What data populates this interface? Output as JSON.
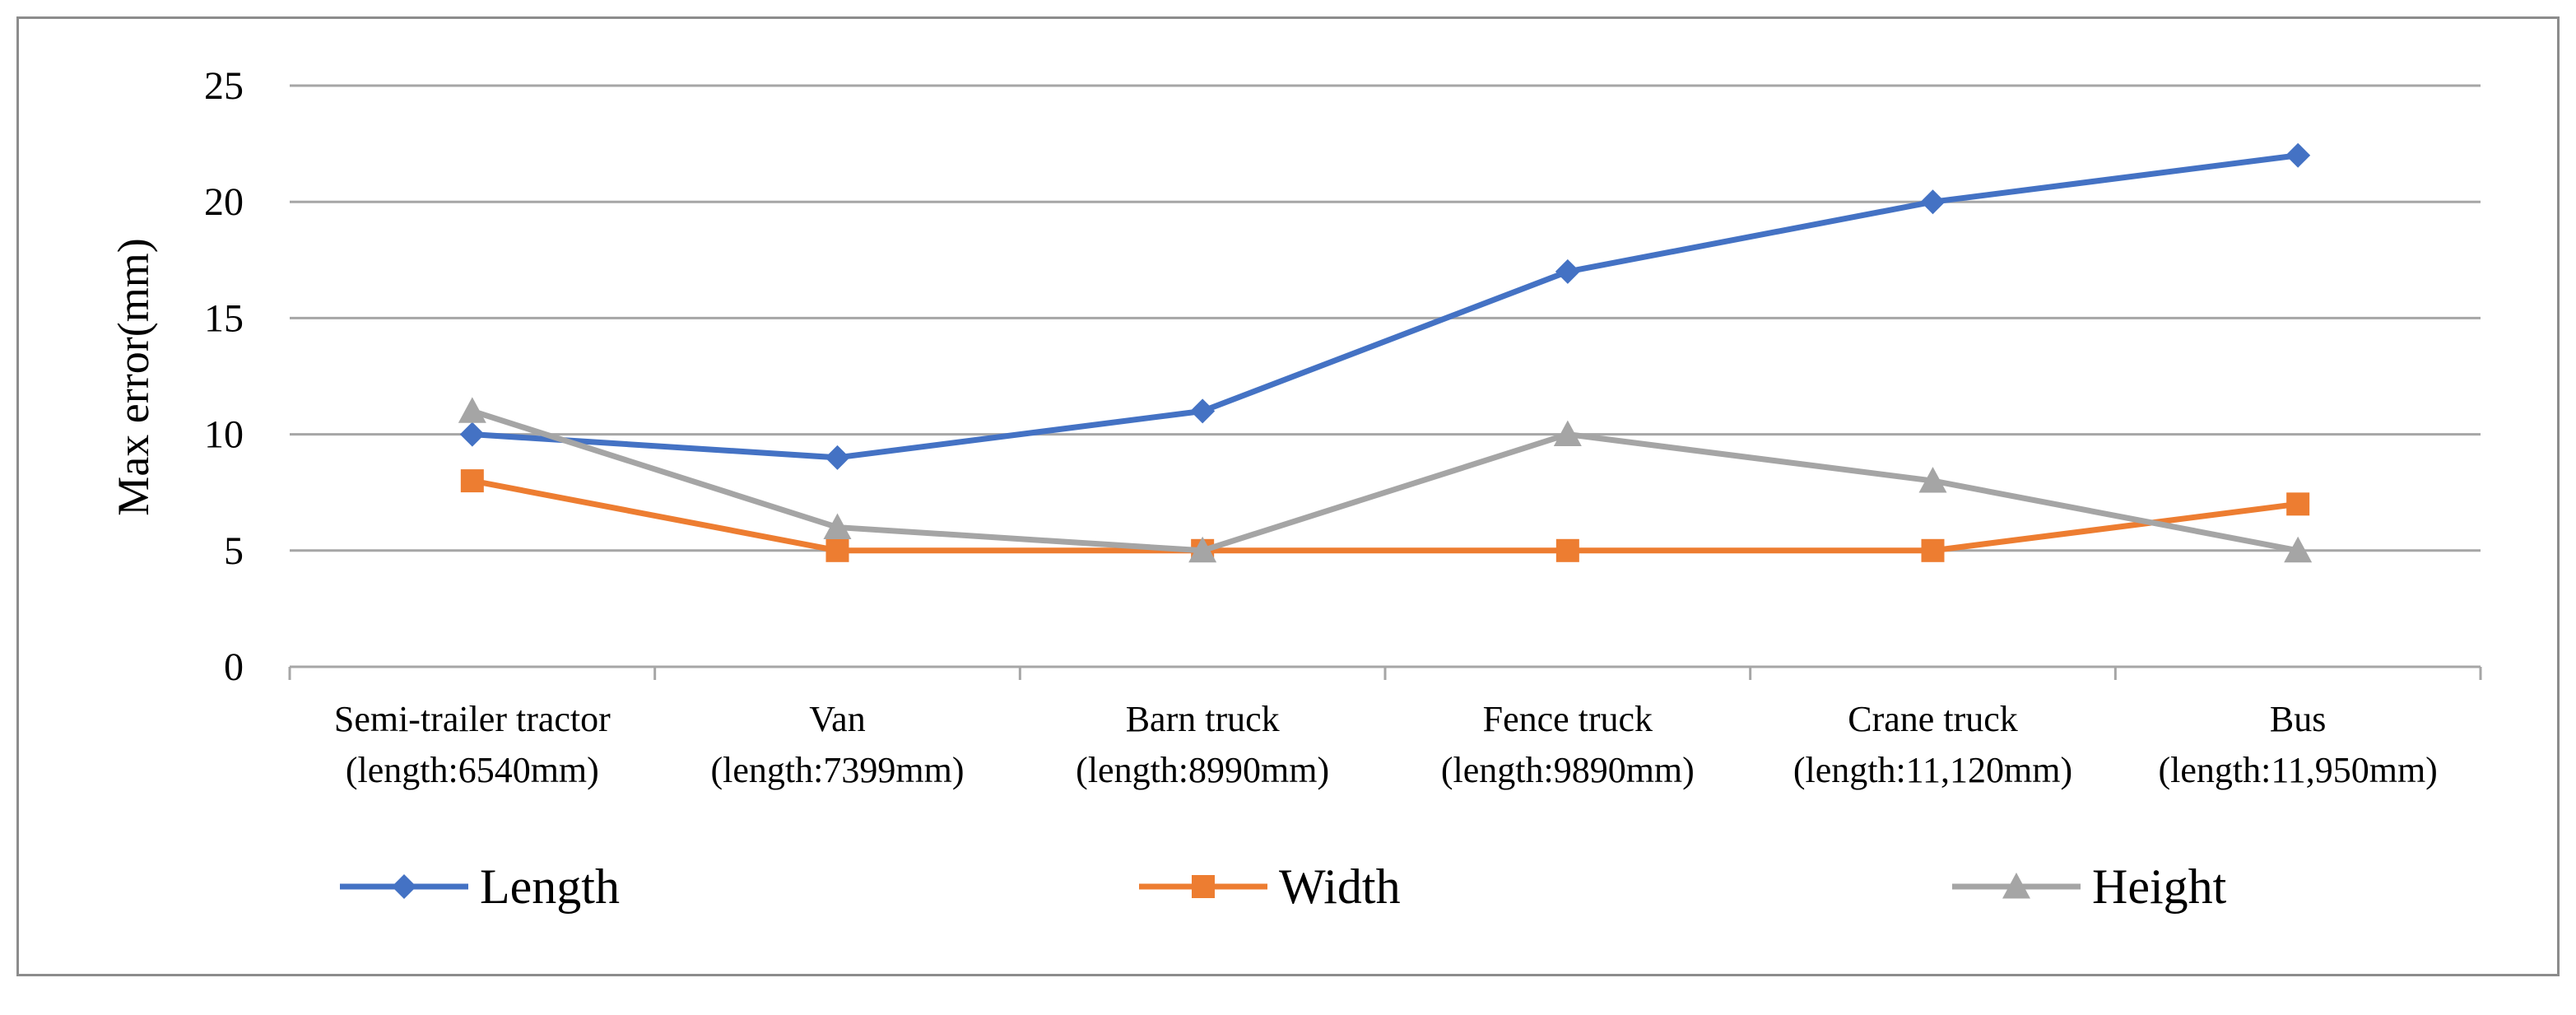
{
  "chart_data": {
    "type": "line",
    "title": "",
    "xlabel": "",
    "ylabel": "Max error(mm)",
    "ylim": [
      0,
      25
    ],
    "yticks": [
      0,
      5,
      10,
      15,
      20,
      25
    ],
    "grid": true,
    "legend_position": "bottom",
    "categories": [
      {
        "name": "Semi-trailer tractor",
        "detail": "(length:6540mm)"
      },
      {
        "name": "Van",
        "detail": "(length:7399mm)"
      },
      {
        "name": "Barn truck",
        "detail": "(length:8990mm)"
      },
      {
        "name": "Fence truck",
        "detail": "(length:9890mm)"
      },
      {
        "name": "Crane truck",
        "detail": "(length:11,120mm)"
      },
      {
        "name": "Bus",
        "detail": "(length:11,950mm)"
      }
    ],
    "series": [
      {
        "name": "Length",
        "color": "#4472c4",
        "marker": "diamond",
        "values": [
          10,
          9,
          11,
          17,
          20,
          22
        ]
      },
      {
        "name": "Width",
        "color": "#ed7d31",
        "marker": "square",
        "values": [
          8,
          5,
          5,
          5,
          5,
          7
        ]
      },
      {
        "name": "Height",
        "color": "#a5a5a5",
        "marker": "triangle",
        "values": [
          11,
          6,
          5,
          10,
          8,
          5
        ]
      }
    ]
  }
}
